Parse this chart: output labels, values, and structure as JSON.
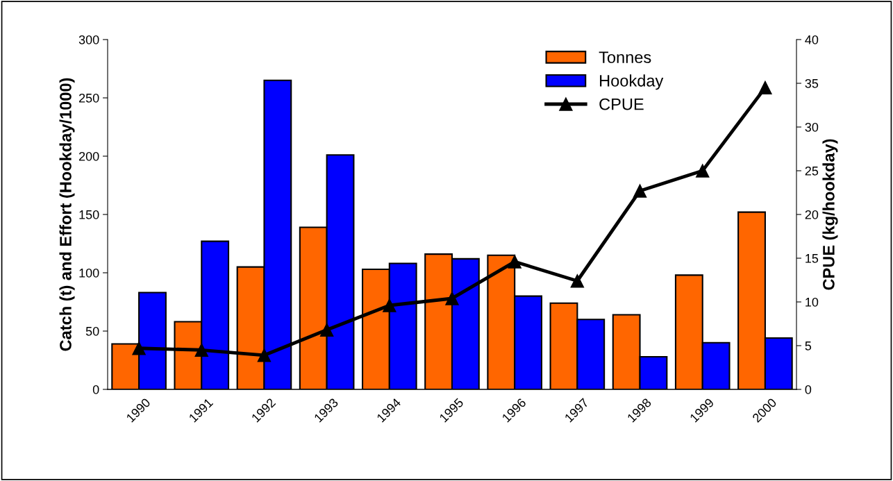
{
  "chart_data": {
    "type": "bar",
    "ylabel": "Catch (t) and Effort (Hookday/1000)",
    "y2label": "CPUE (kg/hookday)",
    "categories": [
      "1990",
      "1991",
      "1992",
      "1993",
      "1994",
      "1995",
      "1996",
      "1997",
      "1998",
      "1999",
      "2000"
    ],
    "series": [
      {
        "name": "Tonnes",
        "color": "#ff6600",
        "values": [
          39,
          58,
          105,
          139,
          103,
          116,
          115,
          74,
          64,
          98,
          152
        ]
      },
      {
        "name": "Hookday",
        "color": "#0000ff",
        "values": [
          83,
          127,
          265,
          201,
          108,
          112,
          80,
          60,
          28,
          40,
          44
        ]
      },
      {
        "name": "CPUE",
        "type": "line",
        "axis": "y2",
        "color": "#000000",
        "marker": "triangle",
        "values": [
          4.7,
          4.5,
          3.9,
          6.8,
          9.6,
          10.4,
          14.6,
          12.4,
          22.7,
          25.0,
          34.5
        ]
      }
    ],
    "ylim": [
      0,
      300
    ],
    "yticks": [
      0,
      50,
      100,
      150,
      200,
      250,
      300
    ],
    "y2lim": [
      0,
      40
    ],
    "y2ticks": [
      0,
      5,
      10,
      15,
      20,
      25,
      30,
      35,
      40
    ],
    "grid": false,
    "legend": "top"
  }
}
